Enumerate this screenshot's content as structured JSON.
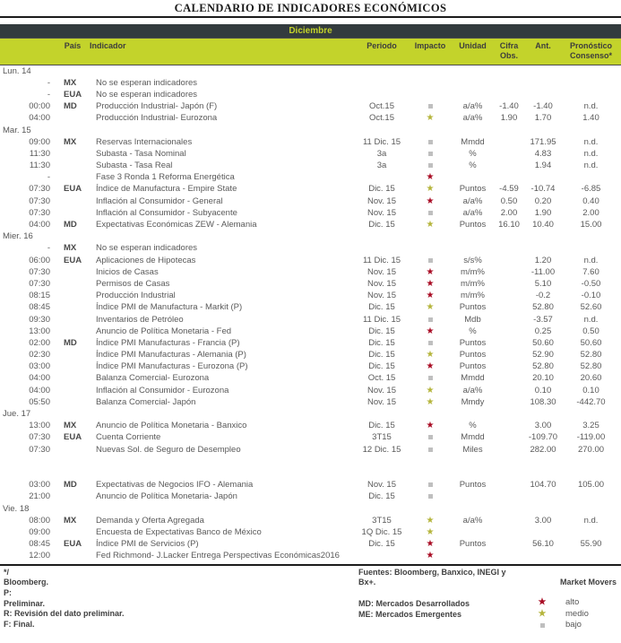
{
  "title": "CALENDARIO DE INDICADORES ECONÓMICOS",
  "month": "Diciembre",
  "colors": {
    "accent_chartreuse": "#c3d32b",
    "dark_band": "#333b3e",
    "impact_alto": "#a80b23",
    "impact_medio": "#b5b53c",
    "impact_bajo": "#bfbfbf"
  },
  "table": {
    "header": {
      "pais": "País",
      "indicador": "Indicador",
      "periodo": "Periodo",
      "impacto": "Impacto",
      "unidad": "Unidad",
      "cifra": "Cifra\nObs.",
      "ant": "Ant.",
      "pronostico": "Pronóstico\nConsenso*"
    },
    "rows": [
      {
        "t": "day",
        "label": "Lun. 14"
      },
      {
        "t": "item",
        "time": "-",
        "country": "MX",
        "indicator": "No se esperan indicadores",
        "period": "",
        "impact": "",
        "unit": "",
        "obs": "",
        "ant": "",
        "fc": ""
      },
      {
        "t": "item",
        "time": "-",
        "country": "EUA",
        "indicator": "No se esperan indicadores",
        "period": "",
        "impact": "",
        "unit": "",
        "obs": "",
        "ant": "",
        "fc": ""
      },
      {
        "t": "item",
        "time": "00:00",
        "country": "MD",
        "indicator": "Producción Industrial- Japón (F)",
        "period": "Oct.15",
        "impact": "bajo",
        "unit": "a/a%",
        "obs": "-1.40",
        "ant": "-1.40",
        "fc": "n.d."
      },
      {
        "t": "item",
        "time": "04:00",
        "country": "",
        "indicator": "Producción Industrial- Eurozona",
        "period": "Oct.15",
        "impact": "medio",
        "unit": "a/a%",
        "obs": "1.90",
        "ant": "1.70",
        "fc": "1.40"
      },
      {
        "t": "day",
        "label": "Mar. 15"
      },
      {
        "t": "item",
        "time": "09:00",
        "country": "MX",
        "indicator": "Reservas Internacionales",
        "period": "11 Dic. 15",
        "impact": "bajo",
        "unit": "Mmdd",
        "obs": "",
        "ant": "171.95",
        "fc": "n.d."
      },
      {
        "t": "item",
        "time": "11:30",
        "country": "",
        "indicator": "Subasta - Tasa Nominal",
        "period": "3a",
        "impact": "bajo",
        "unit": "%",
        "obs": "",
        "ant": "4.83",
        "fc": "n.d."
      },
      {
        "t": "item",
        "time": "11:30",
        "country": "",
        "indicator": "Subasta - Tasa Real",
        "period": "3a",
        "impact": "bajo",
        "unit": "%",
        "obs": "",
        "ant": "1.94",
        "fc": "n.d."
      },
      {
        "t": "item",
        "time": "-",
        "country": "",
        "indicator": "Fase 3 Ronda 1 Reforma Energética",
        "period": "",
        "impact": "alto",
        "unit": "",
        "obs": "",
        "ant": "",
        "fc": ""
      },
      {
        "t": "item",
        "time": "07:30",
        "country": "EUA",
        "indicator": "Índice de Manufactura - Empire State",
        "period": "Dic. 15",
        "impact": "medio",
        "unit": "Puntos",
        "obs": "-4.59",
        "ant": "-10.74",
        "fc": "-6.85"
      },
      {
        "t": "item",
        "time": "07:30",
        "country": "",
        "indicator": "Inflación al Consumidor - General",
        "period": "Nov. 15",
        "impact": "alto",
        "unit": "a/a%",
        "obs": "0.50",
        "ant": "0.20",
        "fc": "0.40"
      },
      {
        "t": "item",
        "time": "07:30",
        "country": "",
        "indicator": "Inflación al Consumidor - Subyacente",
        "period": "Nov. 15",
        "impact": "bajo",
        "unit": "a/a%",
        "obs": "2.00",
        "ant": "1.90",
        "fc": "2.00"
      },
      {
        "t": "item",
        "time": "04:00",
        "country": "MD",
        "indicator": "Expectativas Económicas ZEW -  Alemania",
        "period": "Dic. 15",
        "impact": "medio",
        "unit": "Puntos",
        "obs": "16.10",
        "ant": "10.40",
        "fc": "15.00"
      },
      {
        "t": "day",
        "label": "Mier. 16"
      },
      {
        "t": "item",
        "time": "-",
        "country": "MX",
        "indicator": "No se esperan indicadores",
        "period": "",
        "impact": "",
        "unit": "",
        "obs": "",
        "ant": "",
        "fc": ""
      },
      {
        "t": "item",
        "time": "06:00",
        "country": "EUA",
        "indicator": "Aplicaciones de Hipotecas",
        "period": "11 Dic. 15",
        "impact": "bajo",
        "unit": "s/s%",
        "obs": "",
        "ant": "1.20",
        "fc": "n.d."
      },
      {
        "t": "item",
        "time": "07:30",
        "country": "",
        "indicator": "Inicios de Casas",
        "period": "Nov. 15",
        "impact": "alto",
        "unit": "m/m%",
        "obs": "",
        "ant": "-11.00",
        "fc": "7.60"
      },
      {
        "t": "item",
        "time": "07:30",
        "country": "",
        "indicator": "Permisos de Casas",
        "period": "Nov. 15",
        "impact": "alto",
        "unit": "m/m%",
        "obs": "",
        "ant": "5.10",
        "fc": "-0.50"
      },
      {
        "t": "item",
        "time": "08:15",
        "country": "",
        "indicator": "Producción Industrial",
        "period": "Nov. 15",
        "impact": "alto",
        "unit": "m/m%",
        "obs": "",
        "ant": "-0.2",
        "fc": "-0.10"
      },
      {
        "t": "item",
        "time": "08:45",
        "country": "",
        "indicator": "Índice PMI de Manufactura - Markit (P)",
        "period": "Dic. 15",
        "impact": "medio",
        "unit": "Puntos",
        "obs": "",
        "ant": "52.80",
        "fc": "52.60"
      },
      {
        "t": "item",
        "time": "09:30",
        "country": "",
        "indicator": "Inventarios de Petróleo",
        "period": "11 Dic. 15",
        "impact": "bajo",
        "unit": "Mdb",
        "obs": "",
        "ant": "-3.57",
        "fc": "n.d."
      },
      {
        "t": "item",
        "time": "13:00",
        "country": "",
        "indicator": "Anuncio de Política Monetaria - Fed",
        "period": "Dic. 15",
        "impact": "alto",
        "unit": "%",
        "obs": "",
        "ant": "0.25",
        "fc": "0.50"
      },
      {
        "t": "item",
        "time": "02:00",
        "country": "MD",
        "indicator": "Índice PMI Manufacturas - Francia (P)",
        "period": "Dic. 15",
        "impact": "bajo",
        "unit": "Puntos",
        "obs": "",
        "ant": "50.60",
        "fc": "50.60"
      },
      {
        "t": "item",
        "time": "02:30",
        "country": "",
        "indicator": "Índice PMI Manufacturas - Alemania (P)",
        "period": "Dic. 15",
        "impact": "medio",
        "unit": "Puntos",
        "obs": "",
        "ant": "52.90",
        "fc": "52.80"
      },
      {
        "t": "item",
        "time": "03:00",
        "country": "",
        "indicator": "Índice PMI Manufacturas - Eurozona (P)",
        "period": "Dic. 15",
        "impact": "alto",
        "unit": "Puntos",
        "obs": "",
        "ant": "52.80",
        "fc": "52.80"
      },
      {
        "t": "item",
        "time": "04:00",
        "country": "",
        "indicator": "Balanza Comercial- Eurozona",
        "period": "Oct. 15",
        "impact": "bajo",
        "unit": "Mmdd",
        "obs": "",
        "ant": "20.10",
        "fc": "20.60"
      },
      {
        "t": "item",
        "time": "04:00",
        "country": "",
        "indicator": "Inflación al Consumidor - Eurozona",
        "period": "Nov. 15",
        "impact": "medio",
        "unit": "a/a%",
        "obs": "",
        "ant": "0.10",
        "fc": "0.10"
      },
      {
        "t": "item",
        "time": "05:50",
        "country": "",
        "indicator": "Balanza Comercial- Japón",
        "period": "Nov. 15",
        "impact": "medio",
        "unit": "Mmdy",
        "obs": "",
        "ant": "108.30",
        "fc": "-442.70"
      },
      {
        "t": "day",
        "label": "Jue. 17"
      },
      {
        "t": "item",
        "time": "13:00",
        "country": "MX",
        "indicator": "Anuncio de Política Monetaria - Banxico",
        "period": "Dic. 15",
        "impact": "alto",
        "unit": "%",
        "obs": "",
        "ant": "3.00",
        "fc": "3.25"
      },
      {
        "t": "item",
        "time": "07:30",
        "country": "EUA",
        "indicator": "Cuenta Corriente",
        "period": "3T15",
        "impact": "bajo",
        "unit": "Mmdd",
        "obs": "",
        "ant": "-109.70",
        "fc": "-119.00"
      },
      {
        "t": "item",
        "time": "07:30",
        "country": "",
        "indicator": "Nuevas Sol. de Seguro de Desempleo",
        "period": "12 Dic. 15",
        "impact": "bajo",
        "unit": "Miles",
        "obs": "",
        "ant": "282.00",
        "fc": "270.00"
      },
      {
        "t": "spacer"
      },
      {
        "t": "spacer"
      },
      {
        "t": "item",
        "time": "03:00",
        "country": "MD",
        "indicator": "Expectativas de Negocios IFO - Alemania",
        "period": "Nov. 15",
        "impact": "bajo",
        "unit": "Puntos",
        "obs": "",
        "ant": "104.70",
        "fc": "105.00"
      },
      {
        "t": "item",
        "time": "21:00",
        "country": "",
        "indicator": "Anuncio de Política Monetaria- Japón",
        "period": "Dic. 15",
        "impact": "bajo",
        "unit": "",
        "obs": "",
        "ant": "",
        "fc": ""
      },
      {
        "t": "day",
        "label": "Vie. 18"
      },
      {
        "t": "item",
        "time": "08:00",
        "country": "MX",
        "indicator": "Demanda y Oferta Agregada",
        "period": "3T15",
        "impact": "medio",
        "unit": "a/a%",
        "obs": "",
        "ant": "3.00",
        "fc": "n.d."
      },
      {
        "t": "item",
        "time": "09:00",
        "country": "",
        "indicator": "Encuesta de Expectativas Banco de México",
        "period": "1Q Dic. 15",
        "impact": "medio",
        "unit": "",
        "obs": "",
        "ant": "",
        "fc": ""
      },
      {
        "t": "item",
        "time": "08:45",
        "country": "EUA",
        "indicator": "Índice PMI de Servicios  (P)",
        "period": "Dic. 15",
        "impact": "alto",
        "unit": "Puntos",
        "obs": "",
        "ant": "56.10",
        "fc": "55.90"
      },
      {
        "t": "item",
        "time": "12:00",
        "country": "",
        "indicator": "Fed Richmond- J.Lacker Entrega Perspectivas Económicas2016",
        "period": "",
        "impact": "alto",
        "unit": "",
        "obs": "",
        "ant": "",
        "fc": ""
      }
    ]
  },
  "footer": {
    "left_lines": [
      "*/",
      "Bloomberg.",
      "P:",
      "Preliminar.",
      "R: Revisión del dato preliminar.",
      "F: Final."
    ],
    "fuentes": "Fuentes: Bloomberg, Banxico, INEGI y Bx+.",
    "md": "MD: Mercados Desarrollados",
    "me": "ME: Mercados Emergentes",
    "legend_title": "Market Movers",
    "legend": [
      {
        "icon": "red-star",
        "impact": "alto",
        "label": "alto"
      },
      {
        "icon": "olive-star",
        "impact": "medio",
        "label": "medio"
      },
      {
        "icon": "gray-square",
        "impact": "bajo",
        "label": "bajo"
      }
    ]
  }
}
